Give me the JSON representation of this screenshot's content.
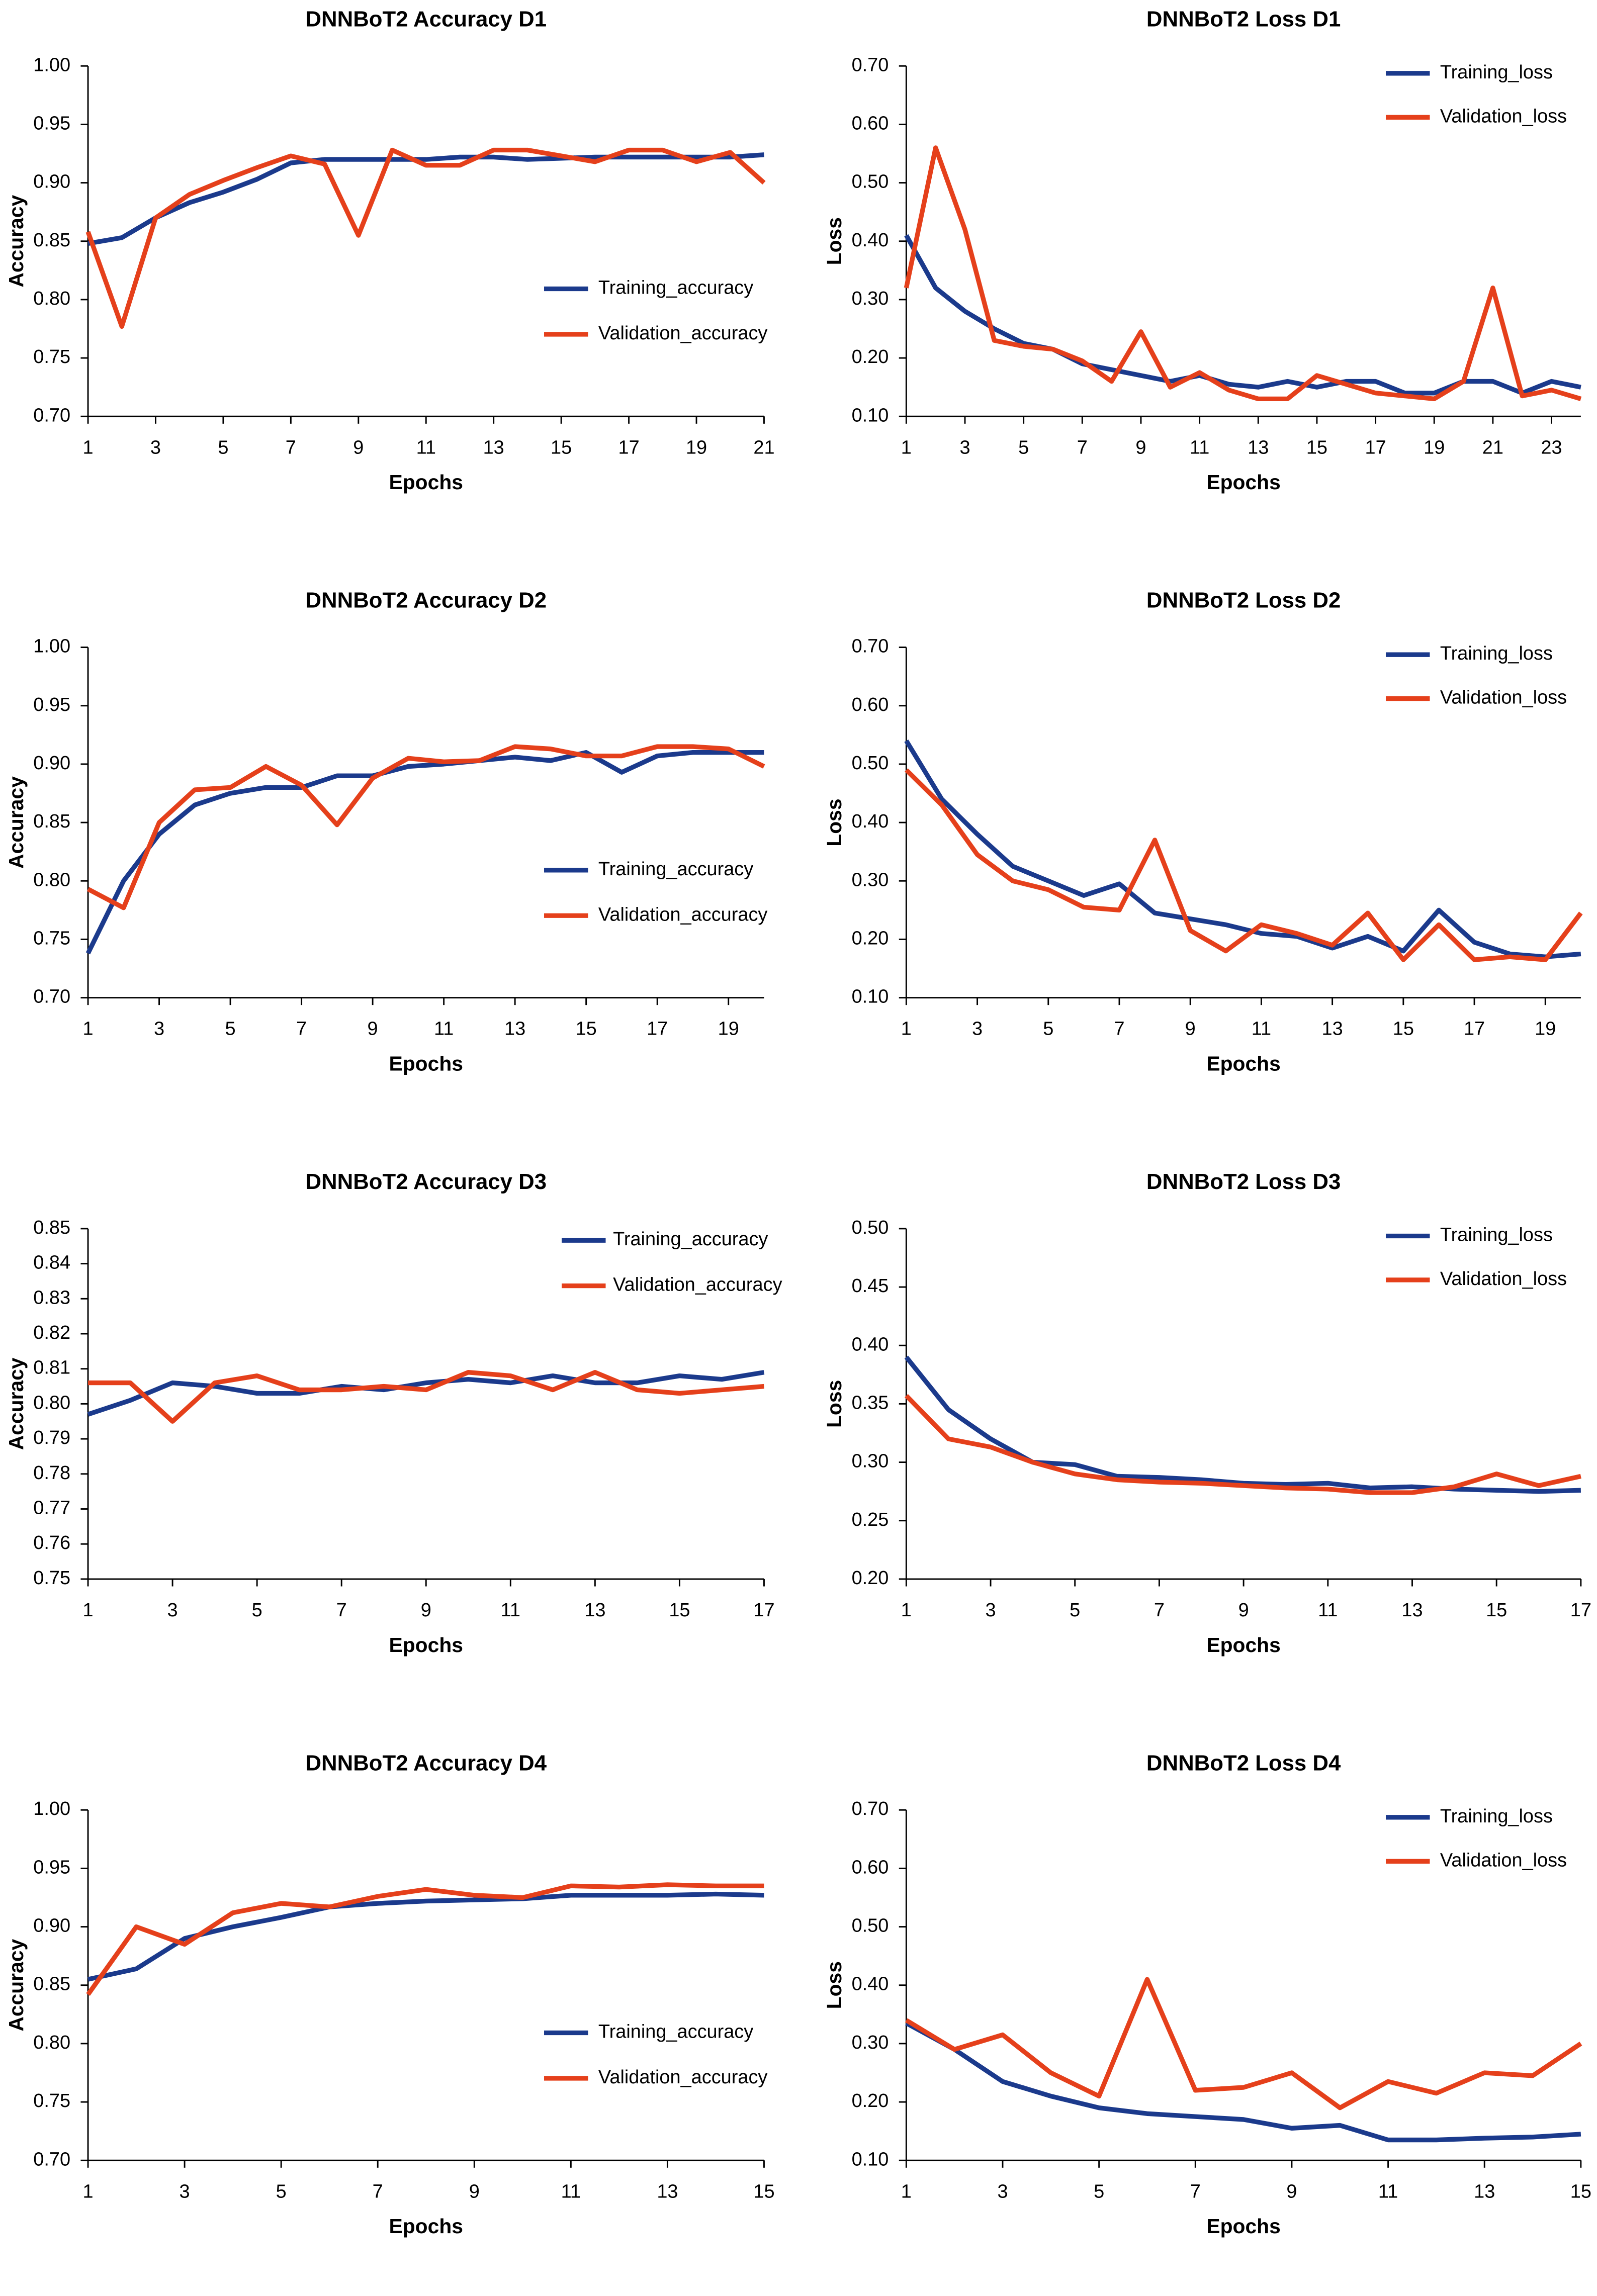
{
  "chart_data": [
    {
      "type": "line",
      "title": "DNNBoT2 Accuracy D1",
      "x_label": "Epochs",
      "y_label": "Accuracy",
      "legend": "lower right",
      "x": [
        1,
        2,
        3,
        4,
        5,
        6,
        7,
        8,
        9,
        10,
        11,
        12,
        13,
        14,
        15,
        16,
        17,
        18,
        19,
        20,
        21
      ],
      "xlim": [
        1,
        21
      ],
      "xticks": [
        1,
        3,
        5,
        7,
        9,
        11,
        13,
        15,
        17,
        19,
        21
      ],
      "ylim": [
        0.7,
        1
      ],
      "yticks": [
        {
          "value": 0.7,
          "label": "0.70"
        },
        0.75,
        {
          "value": 0.8,
          "label": "0.80"
        },
        0.85,
        {
          "value": 0.9,
          "label": "0.90"
        },
        0.95,
        {
          "value": 1,
          "label": "1.00"
        }
      ],
      "series": [
        {
          "name": "Training_accuracy",
          "color": "#1b3a8c",
          "values": [
            0.848,
            0.853,
            0.87,
            0.883,
            0.892,
            0.903,
            0.917,
            0.92,
            0.92,
            0.92,
            0.92,
            0.922,
            0.922,
            0.92,
            0.921,
            0.922,
            0.922,
            0.922,
            0.922,
            0.922,
            0.924
          ]
        },
        {
          "name": "Validation_accuracy",
          "color": "#e5401b",
          "values": [
            0.858,
            0.777,
            0.87,
            0.89,
            0.902,
            0.913,
            0.923,
            0.916,
            0.855,
            0.928,
            0.915,
            0.915,
            0.928,
            0.928,
            0.923,
            0.918,
            0.928,
            0.928,
            0.918,
            0.926,
            0.9
          ]
        }
      ]
    },
    {
      "type": "line",
      "title": "DNNBoT2 Loss D1",
      "x_label": "Epochs",
      "y_label": "Loss",
      "legend": "upper right",
      "x": [
        1,
        2,
        3,
        4,
        5,
        6,
        7,
        8,
        9,
        10,
        11,
        12,
        13,
        14,
        15,
        16,
        17,
        18,
        19,
        20,
        21,
        22,
        23,
        24
      ],
      "xlim": [
        1,
        24
      ],
      "xticks": [
        1,
        3,
        5,
        7,
        9,
        11,
        13,
        15,
        17,
        19,
        21,
        23
      ],
      "ylim": [
        0.1,
        0.7
      ],
      "yticks": [
        {
          "value": 0.1,
          "label": "0.10"
        },
        {
          "value": 0.2,
          "label": "0.20"
        },
        {
          "value": 0.3,
          "label": "0.30"
        },
        {
          "value": 0.4,
          "label": "0.40"
        },
        {
          "value": 0.5,
          "label": "0.50"
        },
        {
          "value": 0.6,
          "label": "0.60"
        },
        {
          "value": 0.7,
          "label": "0.70"
        }
      ],
      "series": [
        {
          "name": "Training_loss",
          "color": "#1b3a8c",
          "values": [
            0.41,
            0.32,
            0.28,
            0.25,
            0.225,
            0.215,
            0.19,
            0.18,
            0.17,
            0.16,
            0.17,
            0.155,
            0.15,
            0.16,
            0.15,
            0.16,
            0.16,
            0.14,
            0.14,
            0.16,
            0.16,
            0.14,
            0.16,
            0.15
          ]
        },
        {
          "name": "Validation_loss",
          "color": "#e5401b",
          "values": [
            0.32,
            0.56,
            0.42,
            0.23,
            0.22,
            0.215,
            0.195,
            0.16,
            0.245,
            0.15,
            0.175,
            0.145,
            0.13,
            0.13,
            0.17,
            0.155,
            0.14,
            0.135,
            0.13,
            0.16,
            0.32,
            0.135,
            0.145,
            0.13
          ]
        }
      ]
    },
    {
      "type": "line",
      "title": "DNNBoT2 Accuracy D2",
      "x_label": "Epochs",
      "y_label": "Accuracy",
      "legend": "lower right",
      "x": [
        1,
        2,
        3,
        4,
        5,
        6,
        7,
        8,
        9,
        10,
        11,
        12,
        13,
        14,
        15,
        16,
        17,
        18,
        19,
        20
      ],
      "xlim": [
        1,
        20
      ],
      "xticks": [
        1,
        3,
        5,
        7,
        9,
        11,
        13,
        15,
        17,
        19
      ],
      "ylim": [
        0.7,
        1
      ],
      "yticks": [
        {
          "value": 0.7,
          "label": "0.70"
        },
        0.75,
        {
          "value": 0.8,
          "label": "0.80"
        },
        0.85,
        {
          "value": 0.9,
          "label": "0.90"
        },
        0.95,
        {
          "value": 1,
          "label": "1.00"
        }
      ],
      "series": [
        {
          "name": "Training_accuracy",
          "color": "#1b3a8c",
          "values": [
            0.738,
            0.8,
            0.84,
            0.865,
            0.875,
            0.88,
            0.88,
            0.89,
            0.89,
            0.898,
            0.9,
            0.903,
            0.906,
            0.903,
            0.91,
            0.893,
            0.907,
            0.91,
            0.91,
            0.91
          ]
        },
        {
          "name": "Validation_accuracy",
          "color": "#e5401b",
          "values": [
            0.793,
            0.777,
            0.85,
            0.878,
            0.88,
            0.898,
            0.882,
            0.848,
            0.888,
            0.905,
            0.902,
            0.903,
            0.915,
            0.913,
            0.907,
            0.907,
            0.915,
            0.915,
            0.913,
            0.898
          ]
        }
      ]
    },
    {
      "type": "line",
      "title": "DNNBoT2 Loss D2",
      "x_label": "Epochs",
      "y_label": "Loss",
      "legend": "upper right",
      "x": [
        1,
        2,
        3,
        4,
        5,
        6,
        7,
        8,
        9,
        10,
        11,
        12,
        13,
        14,
        15,
        16,
        17,
        18,
        19,
        20
      ],
      "xlim": [
        1,
        20
      ],
      "xticks": [
        1,
        3,
        5,
        7,
        9,
        11,
        13,
        15,
        17,
        19
      ],
      "ylim": [
        0.1,
        0.7
      ],
      "yticks": [
        {
          "value": 0.1,
          "label": "0.10"
        },
        {
          "value": 0.2,
          "label": "0.20"
        },
        {
          "value": 0.3,
          "label": "0.30"
        },
        {
          "value": 0.4,
          "label": "0.40"
        },
        {
          "value": 0.5,
          "label": "0.50"
        },
        {
          "value": 0.6,
          "label": "0.60"
        },
        {
          "value": 0.7,
          "label": "0.70"
        }
      ],
      "series": [
        {
          "name": "Training_loss",
          "color": "#1b3a8c",
          "values": [
            0.54,
            0.44,
            0.38,
            0.325,
            0.3,
            0.275,
            0.295,
            0.245,
            0.235,
            0.225,
            0.21,
            0.205,
            0.185,
            0.205,
            0.18,
            0.25,
            0.195,
            0.175,
            0.17,
            0.175
          ]
        },
        {
          "name": "Validation_loss",
          "color": "#e5401b",
          "values": [
            0.49,
            0.43,
            0.345,
            0.3,
            0.285,
            0.255,
            0.25,
            0.37,
            0.215,
            0.18,
            0.225,
            0.21,
            0.19,
            0.245,
            0.165,
            0.225,
            0.165,
            0.17,
            0.165,
            0.245
          ]
        }
      ]
    },
    {
      "type": "line",
      "title": "DNNBoT2 Accuracy D3",
      "x_label": "Epochs",
      "y_label": "Accuracy",
      "legend": "upper right",
      "x": [
        1,
        2,
        3,
        4,
        5,
        6,
        7,
        8,
        9,
        10,
        11,
        12,
        13,
        14,
        15,
        16,
        17
      ],
      "xlim": [
        1,
        17
      ],
      "xticks": [
        1,
        3,
        5,
        7,
        9,
        11,
        13,
        15,
        17
      ],
      "ylim": [
        0.75,
        0.85
      ],
      "yticks": [
        0.75,
        0.76,
        0.77,
        0.78,
        0.79,
        {
          "value": 0.8,
          "label": "0.80"
        },
        0.81,
        0.82,
        0.83,
        0.84,
        0.85
      ],
      "series": [
        {
          "name": "Training_accuracy",
          "color": "#1b3a8c",
          "values": [
            0.797,
            0.801,
            0.806,
            0.805,
            0.803,
            0.803,
            0.805,
            0.804,
            0.806,
            0.807,
            0.806,
            0.808,
            0.806,
            0.806,
            0.808,
            0.807,
            0.809
          ]
        },
        {
          "name": "Validation_accuracy",
          "color": "#e5401b",
          "values": [
            0.806,
            0.806,
            0.795,
            0.806,
            0.808,
            0.804,
            0.804,
            0.805,
            0.804,
            0.809,
            0.808,
            0.804,
            0.809,
            0.804,
            0.803,
            0.804,
            0.805
          ]
        }
      ]
    },
    {
      "type": "line",
      "title": "DNNBoT2  Loss D3",
      "x_label": "Epochs",
      "y_label": "Loss",
      "legend": "upper right",
      "x": [
        1,
        2,
        3,
        4,
        5,
        6,
        7,
        8,
        9,
        10,
        11,
        12,
        13,
        14,
        15,
        16,
        17
      ],
      "xlim": [
        1,
        17
      ],
      "xticks": [
        1,
        3,
        5,
        7,
        9,
        11,
        13,
        15,
        17
      ],
      "ylim": [
        0.2,
        0.5
      ],
      "yticks": [
        {
          "value": 0.2,
          "label": "0.20"
        },
        0.25,
        {
          "value": 0.3,
          "label": "0.30"
        },
        0.35,
        {
          "value": 0.4,
          "label": "0.40"
        },
        0.45,
        {
          "value": 0.5,
          "label": "0.50"
        }
      ],
      "series": [
        {
          "name": "Training_loss",
          "color": "#1b3a8c",
          "values": [
            0.39,
            0.345,
            0.32,
            0.3,
            0.298,
            0.288,
            0.287,
            0.285,
            0.282,
            0.281,
            0.282,
            0.278,
            0.279,
            0.277,
            0.276,
            0.275,
            0.276
          ]
        },
        {
          "name": "Validation_loss",
          "color": "#e5401b",
          "values": [
            0.357,
            0.32,
            0.313,
            0.3,
            0.29,
            0.285,
            0.283,
            0.282,
            0.28,
            0.278,
            0.277,
            0.274,
            0.274,
            0.279,
            0.29,
            0.28,
            0.288
          ]
        }
      ]
    },
    {
      "type": "line",
      "title": "DNNBoT2 Accuracy D4",
      "x_label": "Epochs",
      "y_label": "Accuracy",
      "legend": "lower right",
      "x": [
        1,
        2,
        3,
        4,
        5,
        6,
        7,
        8,
        9,
        10,
        11,
        12,
        13,
        14,
        15
      ],
      "xlim": [
        1,
        15
      ],
      "xticks": [
        1,
        3,
        5,
        7,
        9,
        11,
        13,
        15
      ],
      "ylim": [
        0.7,
        1
      ],
      "yticks": [
        {
          "value": 0.7,
          "label": "0.70"
        },
        0.75,
        {
          "value": 0.8,
          "label": "0.80"
        },
        0.85,
        {
          "value": 0.9,
          "label": "0.90"
        },
        0.95,
        {
          "value": 1,
          "label": "1.00"
        }
      ],
      "series": [
        {
          "name": "Training_accuracy",
          "color": "#1b3a8c",
          "values": [
            0.855,
            0.864,
            0.89,
            0.9,
            0.908,
            0.917,
            0.92,
            0.922,
            0.923,
            0.924,
            0.927,
            0.927,
            0.927,
            0.928,
            0.927
          ]
        },
        {
          "name": "Validation_accuracy",
          "color": "#e5401b",
          "values": [
            0.842,
            0.9,
            0.885,
            0.912,
            0.92,
            0.917,
            0.926,
            0.932,
            0.927,
            0.925,
            0.935,
            0.934,
            0.936,
            0.935,
            0.935
          ]
        }
      ]
    },
    {
      "type": "line",
      "title": "DNNBoT2 Loss D4",
      "x_label": "Epochs",
      "y_label": "Loss",
      "legend": "upper right",
      "x": [
        1,
        2,
        3,
        4,
        5,
        6,
        7,
        8,
        9,
        10,
        11,
        12,
        13,
        14,
        15
      ],
      "xlim": [
        1,
        15
      ],
      "xticks": [
        1,
        3,
        5,
        7,
        9,
        11,
        13,
        15
      ],
      "ylim": [
        0.1,
        0.7
      ],
      "yticks": [
        {
          "value": 0.1,
          "label": "0.10"
        },
        {
          "value": 0.2,
          "label": "0.20"
        },
        {
          "value": 0.3,
          "label": "0.30"
        },
        {
          "value": 0.4,
          "label": "0.40"
        },
        {
          "value": 0.5,
          "label": "0.50"
        },
        {
          "value": 0.6,
          "label": "0.60"
        },
        {
          "value": 0.7,
          "label": "0.70"
        }
      ],
      "series": [
        {
          "name": "Training_loss",
          "color": "#1b3a8c",
          "values": [
            0.335,
            0.29,
            0.235,
            0.21,
            0.19,
            0.18,
            0.175,
            0.17,
            0.155,
            0.16,
            0.135,
            0.135,
            0.138,
            0.14,
            0.145
          ]
        },
        {
          "name": "Validation_loss",
          "color": "#e5401b",
          "values": [
            0.34,
            0.29,
            0.315,
            0.25,
            0.21,
            0.41,
            0.22,
            0.225,
            0.25,
            0.19,
            0.235,
            0.215,
            0.25,
            0.245,
            0.3
          ]
        }
      ]
    }
  ]
}
